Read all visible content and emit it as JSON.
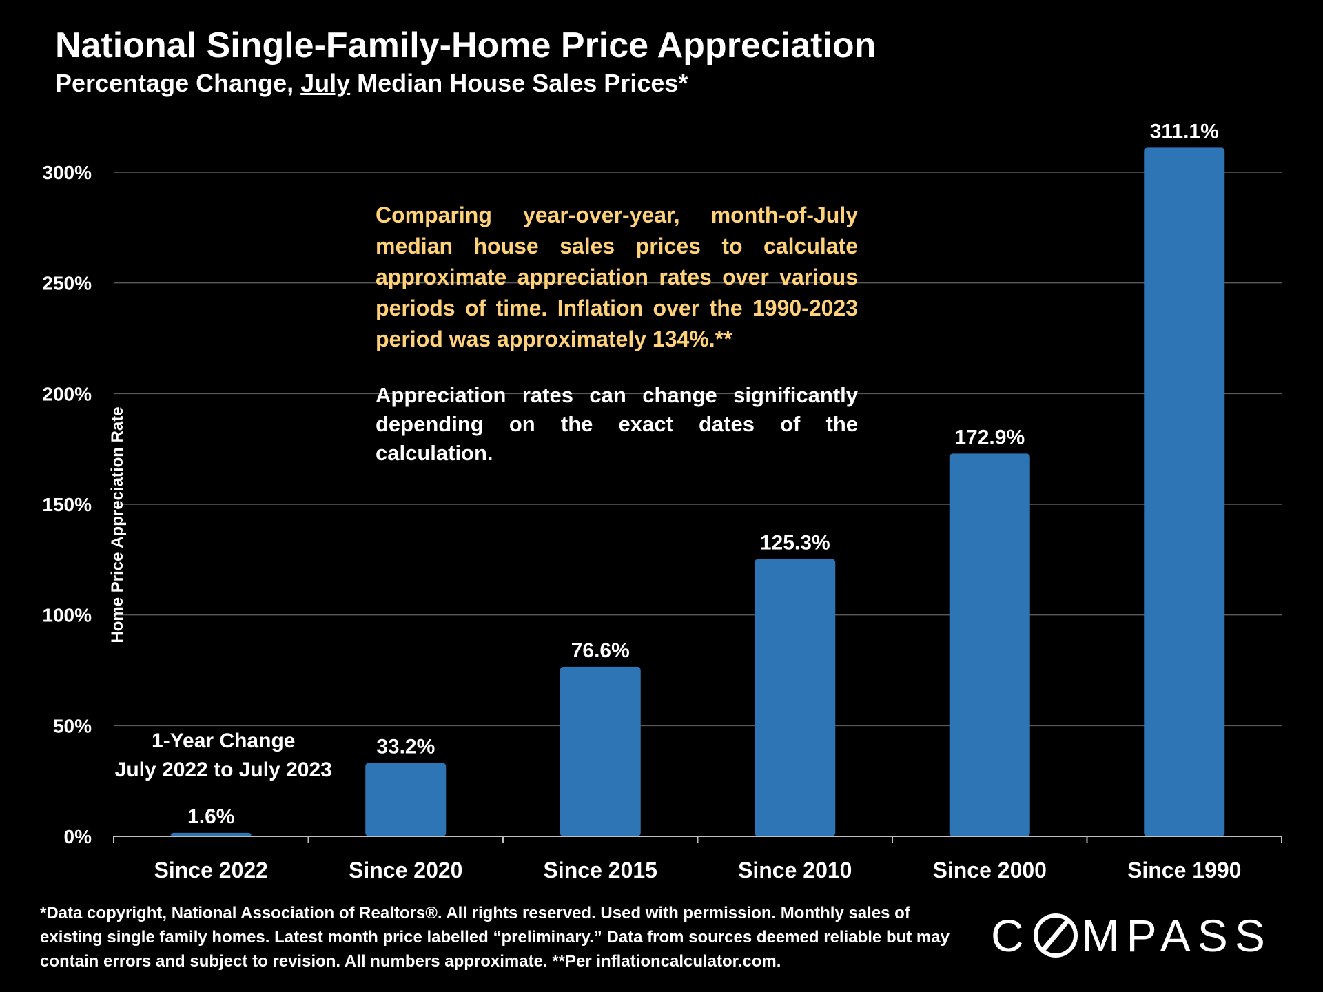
{
  "chart_data": {
    "type": "bar",
    "title": "National Single-Family-Home Price Appreciation",
    "subtitle_parts": [
      "Percentage Change, ",
      "July",
      " Median House Sales Prices*"
    ],
    "ylabel": "Home Price Appreciation Rate",
    "xlabel": "",
    "ylim": [
      0,
      300
    ],
    "yticks": [
      "0%",
      "50%",
      "100%",
      "150%",
      "200%",
      "250%",
      "300%"
    ],
    "ytick_values": [
      0,
      50,
      100,
      150,
      200,
      250,
      300
    ],
    "categories": [
      "Since 2022",
      "Since 2020",
      "Since 2015",
      "Since 2010",
      "Since 2000",
      "Since 1990"
    ],
    "values": [
      1.6,
      33.2,
      76.6,
      125.3,
      172.9,
      311.1
    ],
    "value_labels": [
      "1.6%",
      "33.2%",
      "76.6%",
      "125.3%",
      "172.9%",
      "311.1%"
    ],
    "grid": true,
    "bar_color": "#2e75b6",
    "annotation_first_bar": [
      "1-Year Change",
      "July 2022 to July 2023"
    ]
  },
  "callout": {
    "paragraph1": "Comparing year-over-year, month-of-July median house sales prices to calculate approximate appreciation rates over various periods of time. Inflation over the 1990-2023 period was approximately 134%.**",
    "paragraph2": "Appreciation rates can change significantly depending on the exact dates of the calculation.",
    "highlight_color": "#ffd27a"
  },
  "footnote": "*Data copyright, National Association of Realtors®. All rights reserved. Used with permission. Monthly sales of existing single family homes. Latest month price labelled “preliminary.” Data from sources deemed reliable but may contain errors and subject to revision. All numbers approximate. **Per inflationcalculator.com.",
  "logo": {
    "part1": "C",
    "part2": "MPASS"
  }
}
